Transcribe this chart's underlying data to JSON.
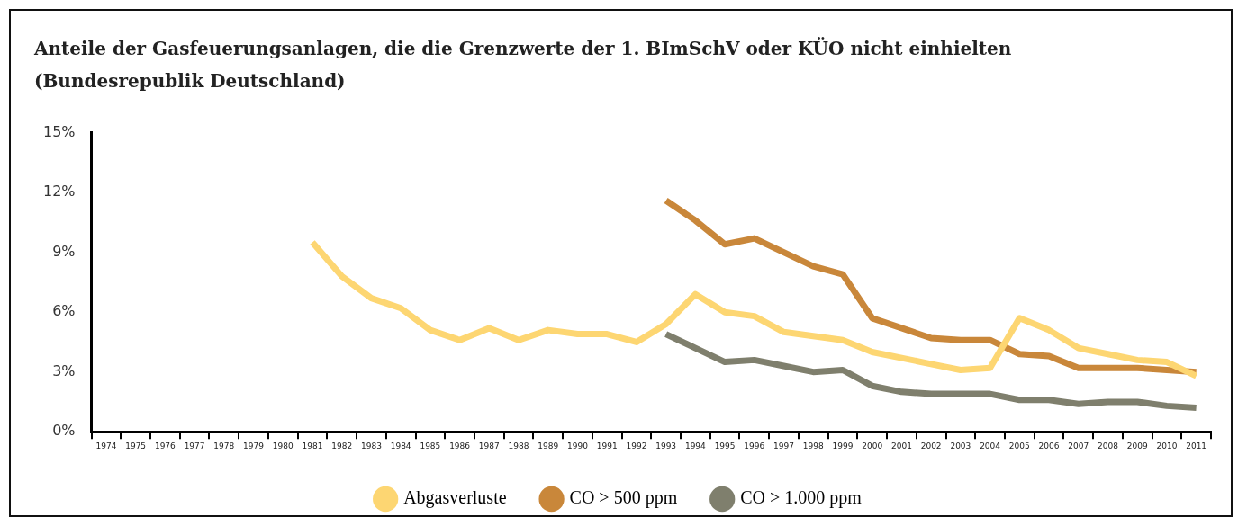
{
  "chart_data": {
    "type": "line",
    "title": "Anteile der Gasfeuerungsanlagen, die die Grenzwerte der 1. BImSchV oder KÜO nicht einhielten (Bundesrepublik Deutschland)",
    "categories": [
      "1974",
      "1975",
      "1976",
      "1977",
      "1978",
      "1979",
      "1980",
      "1981",
      "1982",
      "1983",
      "1984",
      "1985",
      "1986",
      "1987",
      "1988",
      "1989",
      "1990",
      "1991",
      "1992",
      "1993",
      "1994",
      "1995",
      "1996",
      "1997",
      "1998",
      "1999",
      "2000",
      "2001",
      "2002",
      "2003",
      "2004",
      "2005",
      "2006",
      "2007",
      "2008",
      "2009",
      "2010",
      "2011"
    ],
    "series": [
      {
        "name": "Abgasverluste",
        "color": "#fdd672",
        "values": [
          null,
          null,
          null,
          null,
          null,
          null,
          null,
          9.5,
          7.8,
          6.7,
          6.2,
          5.1,
          4.6,
          5.2,
          4.6,
          5.1,
          4.9,
          4.9,
          4.5,
          5.4,
          6.9,
          6.0,
          5.8,
          5.0,
          4.8,
          4.6,
          4.0,
          3.7,
          3.4,
          3.1,
          3.2,
          5.7,
          5.1,
          4.2,
          3.9,
          3.6,
          3.5,
          2.8
        ]
      },
      {
        "name": "CO > 500 ppm",
        "color": "#c9873a",
        "values": [
          null,
          null,
          null,
          null,
          null,
          null,
          null,
          null,
          null,
          null,
          null,
          null,
          null,
          null,
          null,
          null,
          null,
          null,
          null,
          11.6,
          10.6,
          9.4,
          9.7,
          9.0,
          8.3,
          7.9,
          5.7,
          5.2,
          4.7,
          4.6,
          4.6,
          3.9,
          3.8,
          3.2,
          3.2,
          3.2,
          3.1,
          3.0
        ]
      },
      {
        "name": "CO > 1.000 ppm",
        "color": "#7f7f6d",
        "values": [
          null,
          null,
          null,
          null,
          null,
          null,
          null,
          null,
          null,
          null,
          null,
          null,
          null,
          null,
          null,
          null,
          null,
          null,
          null,
          4.9,
          4.2,
          3.5,
          3.6,
          3.3,
          3.0,
          3.1,
          2.3,
          2.0,
          1.9,
          1.9,
          1.9,
          1.6,
          1.6,
          1.4,
          1.5,
          1.5,
          1.3,
          1.2
        ]
      }
    ],
    "ylim": [
      0,
      15
    ],
    "yticks": [
      {
        "value": 0,
        "label": "0%"
      },
      {
        "value": 3,
        "label": "3%"
      },
      {
        "value": 6,
        "label": "6%"
      },
      {
        "value": 9,
        "label": "9%"
      },
      {
        "value": 12,
        "label": "12%"
      },
      {
        "value": 15,
        "label": "15%"
      }
    ],
    "grid": false,
    "legend": "bottom",
    "marker": "none",
    "line_style": "solid"
  }
}
